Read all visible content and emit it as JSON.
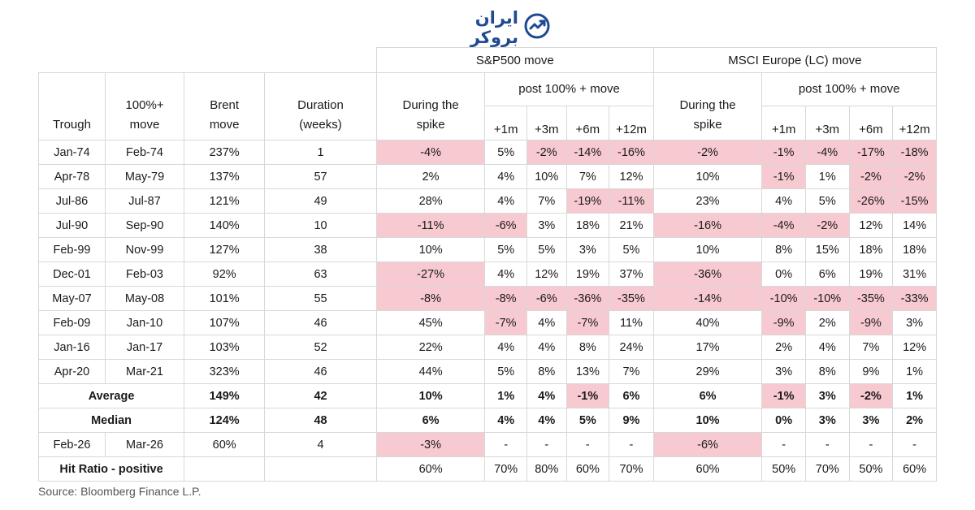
{
  "logo": {
    "text": "ایران بروکر",
    "icon": "chart-check-icon",
    "color": "#1f4a93"
  },
  "headers": {
    "sp_group": "S&P500 move",
    "msci_group": "MSCI Europe (LC) move",
    "post_move_sp": "post 100% + move",
    "post_move_msci": "post 100% + move",
    "trough": "Trough",
    "move_l1": "100%+",
    "move_l2": "move",
    "brent_l1": "Brent",
    "brent_l2": "move",
    "duration_l1": "Duration",
    "duration_l2": "(weeks)",
    "during_sp_l1": "During the",
    "during_sp_l2": "spike",
    "during_msci_l1": "During the",
    "during_msci_l2": "spike",
    "periods": [
      "+1m",
      "+3m",
      "+6m",
      "+12m"
    ]
  },
  "rows": [
    {
      "trough": "Jan-74",
      "move": "Feb-74",
      "brent": "237%",
      "duration": "1",
      "sp": [
        "-4%",
        "5%",
        "-2%",
        "-14%",
        "-16%"
      ],
      "msci": [
        "-2%",
        "-1%",
        "-4%",
        "-17%",
        "-18%"
      ]
    },
    {
      "trough": "Apr-78",
      "move": "May-79",
      "brent": "137%",
      "duration": "57",
      "sp": [
        "2%",
        "4%",
        "10%",
        "7%",
        "12%"
      ],
      "msci": [
        "10%",
        "-1%",
        "1%",
        "-2%",
        "-2%"
      ]
    },
    {
      "trough": "Jul-86",
      "move": "Jul-87",
      "brent": "121%",
      "duration": "49",
      "sp": [
        "28%",
        "4%",
        "7%",
        "-19%",
        "-11%"
      ],
      "msci": [
        "23%",
        "4%",
        "5%",
        "-26%",
        "-15%"
      ]
    },
    {
      "trough": "Jul-90",
      "move": "Sep-90",
      "brent": "140%",
      "duration": "10",
      "sp": [
        "-11%",
        "-6%",
        "3%",
        "18%",
        "21%"
      ],
      "msci": [
        "-16%",
        "-4%",
        "-2%",
        "12%",
        "14%"
      ]
    },
    {
      "trough": "Feb-99",
      "move": "Nov-99",
      "brent": "127%",
      "duration": "38",
      "sp": [
        "10%",
        "5%",
        "5%",
        "3%",
        "5%"
      ],
      "msci": [
        "10%",
        "8%",
        "15%",
        "18%",
        "18%"
      ]
    },
    {
      "trough": "Dec-01",
      "move": "Feb-03",
      "brent": "92%",
      "duration": "63",
      "sp": [
        "-27%",
        "4%",
        "12%",
        "19%",
        "37%"
      ],
      "msci": [
        "-36%",
        "0%",
        "6%",
        "19%",
        "31%"
      ]
    },
    {
      "trough": "May-07",
      "move": "May-08",
      "brent": "101%",
      "duration": "55",
      "sp": [
        "-8%",
        "-8%",
        "-6%",
        "-36%",
        "-35%"
      ],
      "msci": [
        "-14%",
        "-10%",
        "-10%",
        "-35%",
        "-33%"
      ]
    },
    {
      "trough": "Feb-09",
      "move": "Jan-10",
      "brent": "107%",
      "duration": "46",
      "sp": [
        "45%",
        "-7%",
        "4%",
        "-7%",
        "11%"
      ],
      "msci": [
        "40%",
        "-9%",
        "2%",
        "-9%",
        "3%"
      ]
    },
    {
      "trough": "Jan-16",
      "move": "Jan-17",
      "brent": "103%",
      "duration": "52",
      "sp": [
        "22%",
        "4%",
        "4%",
        "8%",
        "24%"
      ],
      "msci": [
        "17%",
        "2%",
        "4%",
        "7%",
        "12%"
      ]
    },
    {
      "trough": "Apr-20",
      "move": "Mar-21",
      "brent": "323%",
      "duration": "46",
      "sp": [
        "44%",
        "5%",
        "8%",
        "13%",
        "7%"
      ],
      "msci": [
        "29%",
        "3%",
        "8%",
        "9%",
        "1%"
      ]
    }
  ],
  "summary": [
    {
      "label": "Average",
      "brent": "149%",
      "duration": "42",
      "sp": [
        "10%",
        "1%",
        "4%",
        "-1%",
        "6%"
      ],
      "msci": [
        "6%",
        "-1%",
        "3%",
        "-2%",
        "1%"
      ]
    },
    {
      "label": "Median",
      "brent": "124%",
      "duration": "48",
      "sp": [
        "6%",
        "4%",
        "4%",
        "5%",
        "9%"
      ],
      "msci": [
        "10%",
        "0%",
        "3%",
        "3%",
        "2%"
      ]
    }
  ],
  "current": {
    "trough": "Feb-26",
    "move": "Mar-26",
    "brent": "60%",
    "duration": "4",
    "sp": [
      "-3%",
      "-",
      "-",
      "-",
      "-"
    ],
    "msci": [
      "-6%",
      "-",
      "-",
      "-",
      "-"
    ]
  },
  "hit_ratio": {
    "label": "Hit Ratio - positive",
    "sp": [
      "60%",
      "70%",
      "80%",
      "60%",
      "70%"
    ],
    "msci": [
      "60%",
      "50%",
      "70%",
      "50%",
      "60%"
    ]
  },
  "source": "Source: Bloomberg Finance L.P.",
  "colors": {
    "negative_bg": "#f7c9d0",
    "border": "#d8d8d8"
  }
}
